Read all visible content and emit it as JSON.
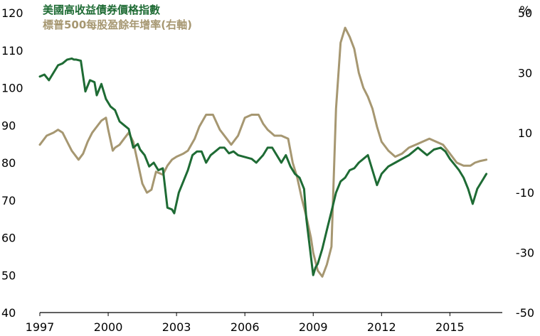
{
  "chart_data": {
    "type": "line",
    "title": "",
    "legend": [
      "美國高收益債券價格指數",
      "標普500每股盈餘年增率(右軸)"
    ],
    "legend_placement": "top-left",
    "x_ticks": [
      "1997",
      "2000",
      "2003",
      "2006",
      "2009",
      "2012",
      "2015"
    ],
    "y_left": {
      "ticks": [
        "120",
        "110",
        "100",
        "90",
        "80",
        "70",
        "60",
        "50",
        "40"
      ],
      "range": [
        40,
        120
      ]
    },
    "y_right": {
      "unit": "%",
      "ticks": [
        "50",
        "30",
        "10",
        "-10",
        "-30",
        "-50"
      ],
      "range": [
        -50,
        50
      ]
    },
    "grid": false,
    "series": [
      {
        "name": "美國高收益債券價格指數",
        "axis": "left",
        "color": "#1e6b34",
        "x": [
          1997.0,
          1997.2,
          1997.4,
          1997.6,
          1997.8,
          1998.0,
          1998.2,
          1998.4,
          1998.5,
          1998.6,
          1998.8,
          1999.0,
          1999.2,
          1999.4,
          1999.5,
          1999.7,
          1999.9,
          2000.1,
          2000.3,
          2000.5,
          2000.7,
          2000.9,
          2001.1,
          2001.3,
          2001.4,
          2001.6,
          2001.8,
          2002.0,
          2002.2,
          2002.4,
          2002.6,
          2002.8,
          2002.9,
          2003.1,
          2003.3,
          2003.5,
          2003.7,
          2003.9,
          2004.1,
          2004.3,
          2004.5,
          2004.7,
          2004.9,
          2005.1,
          2005.3,
          2005.5,
          2005.7,
          2006.0,
          2006.3,
          2006.5,
          2006.8,
          2007.0,
          2007.2,
          2007.5,
          2007.6,
          2007.8,
          2008.0,
          2008.2,
          2008.4,
          2008.6,
          2008.7,
          2008.8,
          2008.9,
          2009.0,
          2009.1,
          2009.2,
          2009.4,
          2009.6,
          2009.8,
          2010.0,
          2010.2,
          2010.4,
          2010.6,
          2010.8,
          2011.0,
          2011.2,
          2011.4,
          2011.5,
          2011.6,
          2011.8,
          2012.0,
          2012.3,
          2012.6,
          2012.9,
          2013.2,
          2013.4,
          2013.6,
          2013.8,
          2014.0,
          2014.3,
          2014.6,
          2014.8,
          2015.0,
          2015.2,
          2015.4,
          2015.6,
          2015.8,
          2016.0,
          2016.2,
          2016.4,
          2016.6
        ],
        "values": [
          103.0,
          103.5,
          102.0,
          104.0,
          106.0,
          106.5,
          107.5,
          107.8,
          107.5,
          107.5,
          107.2,
          99.0,
          102.0,
          101.5,
          98.0,
          101.0,
          97.0,
          95.0,
          94.0,
          91.0,
          90.0,
          89.0,
          84.0,
          85.0,
          83.5,
          82.0,
          79.0,
          80.0,
          78.0,
          78.5,
          68.0,
          67.5,
          66.5,
          72.0,
          75.0,
          78.0,
          82.0,
          83.0,
          83.0,
          80.0,
          82.0,
          83.0,
          84.0,
          84.0,
          82.5,
          83.0,
          82.0,
          81.5,
          81.0,
          80.0,
          82.0,
          84.0,
          84.0,
          81.0,
          80.0,
          82.0,
          79.0,
          77.0,
          76.0,
          73.0,
          65.0,
          60.0,
          55.0,
          50.0,
          52.0,
          53.0,
          57.0,
          62.0,
          67.0,
          72.0,
          75.0,
          76.0,
          78.0,
          78.5,
          80.0,
          81.0,
          82.0,
          80.0,
          78.0,
          74.0,
          77.0,
          79.0,
          80.0,
          81.0,
          82.0,
          83.0,
          84.0,
          83.0,
          82.0,
          83.5,
          84.0,
          83.0,
          81.0,
          79.5,
          78.0,
          76.0,
          73.0,
          69.0,
          73.0,
          75.0,
          77.0
        ]
      },
      {
        "name": "標普500每股盈餘年增率(右軸)",
        "axis": "right",
        "color": "#a69771",
        "x": [
          1997.0,
          1997.3,
          1997.6,
          1997.8,
          1998.0,
          1998.2,
          1998.4,
          1998.7,
          1998.9,
          1999.1,
          1999.3,
          1999.5,
          1999.7,
          1999.9,
          2000.0,
          2000.2,
          2000.3,
          2000.5,
          2000.7,
          2000.9,
          2001.1,
          2001.3,
          2001.5,
          2001.7,
          2001.9,
          2002.1,
          2002.4,
          2002.6,
          2002.8,
          2003.0,
          2003.3,
          2003.5,
          2003.8,
          2004.0,
          2004.3,
          2004.6,
          2004.9,
          2005.2,
          2005.4,
          2005.7,
          2006.0,
          2006.3,
          2006.6,
          2006.8,
          2007.0,
          2007.3,
          2007.6,
          2007.9,
          2008.1,
          2008.3,
          2008.5,
          2008.7,
          2008.9,
          2009.0,
          2009.2,
          2009.4,
          2009.6,
          2009.8,
          2010.0,
          2010.2,
          2010.4,
          2010.6,
          2010.8,
          2011.0,
          2011.2,
          2011.4,
          2011.6,
          2011.8,
          2012.0,
          2012.3,
          2012.6,
          2012.9,
          2013.2,
          2013.5,
          2013.8,
          2014.1,
          2014.4,
          2014.7,
          2015.0,
          2015.3,
          2015.6,
          2015.9,
          2016.1,
          2016.3,
          2016.6
        ],
        "values": [
          6.0,
          9.0,
          10.0,
          11.0,
          10.0,
          7.0,
          4.0,
          1.0,
          3.0,
          7.0,
          10.0,
          12.0,
          14.0,
          15.0,
          11.0,
          4.0,
          5.0,
          6.0,
          8.0,
          10.0,
          7.0,
          0.0,
          -7.0,
          -10.0,
          -9.0,
          -3.0,
          -4.0,
          -1.0,
          1.0,
          2.0,
          3.0,
          4.0,
          8.0,
          12.0,
          16.0,
          16.0,
          11.0,
          8.0,
          6.0,
          9.0,
          15.0,
          16.0,
          16.0,
          13.0,
          11.0,
          9.0,
          9.0,
          8.0,
          0.0,
          -5.0,
          -12.0,
          -18.0,
          -25.0,
          -30.0,
          -36.0,
          -38.0,
          -34.0,
          -28.0,
          18.0,
          40.0,
          45.0,
          42.0,
          38.0,
          30.0,
          25.0,
          22.0,
          18.0,
          12.0,
          7.0,
          4.0,
          2.0,
          3.0,
          5.0,
          6.0,
          7.0,
          8.0,
          7.0,
          6.0,
          3.0,
          0.0,
          -1.0,
          -1.0,
          0.0,
          0.5,
          1.0
        ]
      }
    ]
  }
}
